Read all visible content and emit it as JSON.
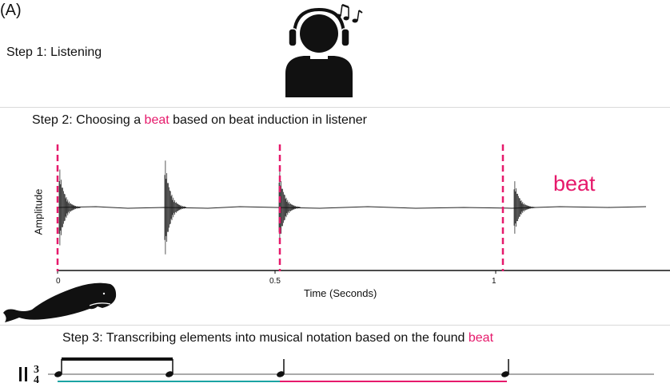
{
  "panel_label": "(A)",
  "steps": {
    "step1": "Step 1: Listening",
    "step2_prefix": "Step 2: Choosing a ",
    "step2_highlight": "beat",
    "step2_suffix": " based on beat induction in listener",
    "step3_prefix": "Step 3: Transcribing elements into musical notation based on the found ",
    "step3_highlight": "beat"
  },
  "waveform": {
    "beat_label": "beat",
    "ylabel": "Amplitude",
    "xlabel": "Time (Seconds)",
    "ticks": [
      "0",
      "0.5",
      "1"
    ]
  },
  "colors": {
    "accent": "#e6196b",
    "teal": "#1aa3a3"
  },
  "icons": [
    "listener-with-headphones-icon",
    "music-notes-icon",
    "sperm-whale-icon"
  ],
  "notation": {
    "time_signature_top": "3",
    "time_signature_bottom": "4"
  }
}
